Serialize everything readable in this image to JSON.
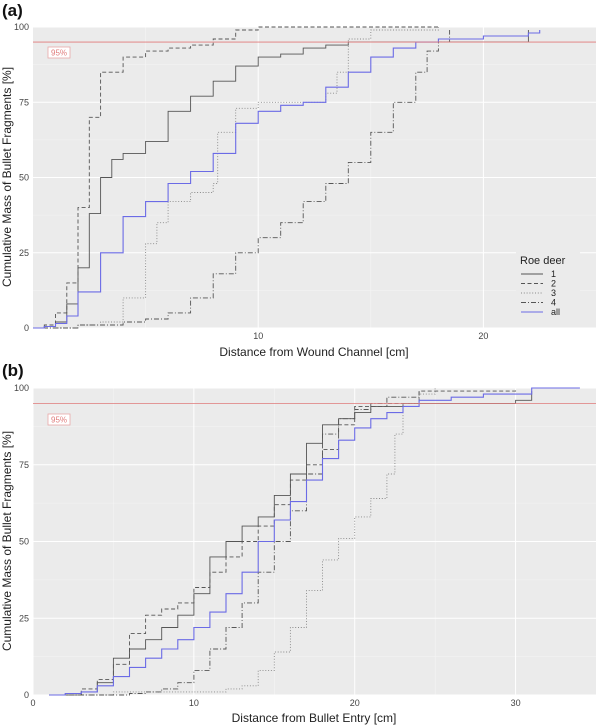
{
  "chart_data": [
    {
      "panel_label": "(a)",
      "type": "line",
      "xlabel": "Distance from Wound Channel [cm]",
      "ylabel": "Cumulative Mass of Bullet Fragments [%]",
      "xlim": [
        0,
        25
      ],
      "ylim": [
        0,
        100
      ],
      "xticks": [
        "10",
        "20"
      ],
      "xtick_values": [
        10,
        20
      ],
      "yticks": [
        "0",
        "25",
        "50",
        "75",
        "100"
      ],
      "ytick_values": [
        0,
        25,
        50,
        75,
        100
      ],
      "reference_line": {
        "y": 95,
        "label": "95%"
      },
      "legend": {
        "title": "Roe deer",
        "placement": "right",
        "entries": [
          "1",
          "2",
          "3",
          "4",
          "all"
        ]
      },
      "series": [
        {
          "name": "1",
          "style": "solid",
          "color": "#555555",
          "points": [
            [
              0,
              0
            ],
            [
              0.5,
              0.5
            ],
            [
              1,
              2
            ],
            [
              1.5,
              8
            ],
            [
              2,
              20
            ],
            [
              2.5,
              38
            ],
            [
              3,
              50
            ],
            [
              3.5,
              56
            ],
            [
              4,
              58
            ],
            [
              5,
              62
            ],
            [
              6,
              72
            ],
            [
              7,
              77
            ],
            [
              8,
              82
            ],
            [
              9,
              87
            ],
            [
              10,
              90
            ],
            [
              11,
              91
            ],
            [
              12,
              93
            ],
            [
              13,
              94
            ],
            [
              14,
              95
            ],
            [
              18,
              95
            ],
            [
              22,
              95
            ],
            [
              22,
              99
            ]
          ]
        },
        {
          "name": "2",
          "style": "dashed",
          "color": "#555555",
          "points": [
            [
              0,
              0
            ],
            [
              0.5,
              1
            ],
            [
              1,
              5
            ],
            [
              1.5,
              15
            ],
            [
              2,
              40
            ],
            [
              2.5,
              70
            ],
            [
              3,
              85
            ],
            [
              4,
              90
            ],
            [
              5,
              92
            ],
            [
              6,
              93
            ],
            [
              7,
              94
            ],
            [
              8,
              96
            ],
            [
              9,
              99
            ],
            [
              10,
              100
            ],
            [
              17,
              100
            ],
            [
              18,
              100
            ]
          ]
        },
        {
          "name": "3",
          "style": "dotted",
          "color": "#888888",
          "points": [
            [
              0,
              0
            ],
            [
              1,
              0
            ],
            [
              2,
              1
            ],
            [
              3,
              2
            ],
            [
              4,
              10
            ],
            [
              5,
              28
            ],
            [
              5.5,
              35
            ],
            [
              6,
              42
            ],
            [
              7,
              45
            ],
            [
              8,
              48
            ],
            [
              8.2,
              65
            ],
            [
              9,
              73
            ],
            [
              10,
              75
            ],
            [
              12,
              75
            ],
            [
              13,
              78
            ],
            [
              13.5,
              85
            ],
            [
              14,
              96
            ],
            [
              15,
              99
            ],
            [
              18,
              100
            ]
          ]
        },
        {
          "name": "4",
          "style": "dashdot",
          "color": "#555555",
          "points": [
            [
              0,
              0
            ],
            [
              2,
              1
            ],
            [
              4,
              2
            ],
            [
              5,
              3
            ],
            [
              6,
              5
            ],
            [
              7,
              10
            ],
            [
              8,
              18
            ],
            [
              9,
              25
            ],
            [
              10,
              30
            ],
            [
              11,
              35
            ],
            [
              12,
              42
            ],
            [
              13,
              48
            ],
            [
              14,
              55
            ],
            [
              15,
              65
            ],
            [
              16,
              75
            ],
            [
              17,
              85
            ],
            [
              17.5,
              92
            ],
            [
              18,
              95
            ],
            [
              18.5,
              99
            ]
          ]
        },
        {
          "name": "all",
          "style": "solid",
          "color": "#6b6be6",
          "points": [
            [
              0,
              0
            ],
            [
              0.5,
              0.5
            ],
            [
              1,
              1.5
            ],
            [
              1.5,
              4
            ],
            [
              2,
              12
            ],
            [
              3,
              25
            ],
            [
              4,
              37
            ],
            [
              5,
              42
            ],
            [
              6,
              48
            ],
            [
              7,
              52
            ],
            [
              8,
              58
            ],
            [
              9,
              68
            ],
            [
              10,
              72
            ],
            [
              11,
              74
            ],
            [
              12,
              75
            ],
            [
              13,
              80
            ],
            [
              14,
              85
            ],
            [
              15,
              90
            ],
            [
              16,
              93
            ],
            [
              17,
              95
            ],
            [
              18,
              96
            ],
            [
              20,
              97
            ],
            [
              22,
              98
            ],
            [
              22.5,
              99
            ]
          ]
        }
      ]
    },
    {
      "panel_label": "(b)",
      "type": "line",
      "xlabel": "Distance from Bullet Entry [cm]",
      "ylabel": "Cumulative Mass of Bullet Fragments [%]",
      "xlim": [
        0,
        35
      ],
      "ylim": [
        0,
        100
      ],
      "xticks": [
        "0",
        "10",
        "20",
        "30"
      ],
      "xtick_values": [
        0,
        10,
        20,
        30
      ],
      "yticks": [
        "0",
        "25",
        "50",
        "75",
        "100"
      ],
      "ytick_values": [
        0,
        25,
        50,
        75,
        100
      ],
      "reference_line": {
        "y": 95,
        "label": "95%"
      },
      "series": [
        {
          "name": "1",
          "style": "solid",
          "color": "#555555",
          "points": [
            [
              1,
              0
            ],
            [
              3,
              1
            ],
            [
              4,
              4
            ],
            [
              5,
              12
            ],
            [
              6,
              15
            ],
            [
              7,
              18
            ],
            [
              8,
              22
            ],
            [
              9,
              26
            ],
            [
              10,
              33
            ],
            [
              11,
              45
            ],
            [
              12,
              50
            ],
            [
              13,
              55
            ],
            [
              14,
              58
            ],
            [
              15,
              65
            ],
            [
              16,
              72
            ],
            [
              17,
              82
            ],
            [
              18,
              88
            ],
            [
              19,
              90
            ],
            [
              20,
              92
            ],
            [
              21,
              94
            ],
            [
              23,
              95
            ],
            [
              30,
              96
            ],
            [
              31,
              99
            ]
          ]
        },
        {
          "name": "2",
          "style": "dashed",
          "color": "#555555",
          "points": [
            [
              1,
              0
            ],
            [
              3,
              2
            ],
            [
              4,
              5
            ],
            [
              5,
              10
            ],
            [
              6,
              20
            ],
            [
              7,
              26
            ],
            [
              8,
              28
            ],
            [
              9,
              30
            ],
            [
              10,
              35
            ],
            [
              11,
              40
            ],
            [
              12,
              45
            ],
            [
              13,
              50
            ],
            [
              14,
              55
            ],
            [
              15,
              62
            ],
            [
              16,
              70
            ],
            [
              17,
              75
            ],
            [
              18,
              80
            ],
            [
              19,
              88
            ],
            [
              20,
              94
            ],
            [
              22,
              95
            ],
            [
              24,
              99
            ],
            [
              30,
              100
            ]
          ]
        },
        {
          "name": "3",
          "style": "dotted",
          "color": "#888888",
          "points": [
            [
              1,
              0
            ],
            [
              5,
              1
            ],
            [
              10,
              1
            ],
            [
              12,
              2
            ],
            [
              13,
              3
            ],
            [
              14,
              8
            ],
            [
              15,
              14
            ],
            [
              16,
              22
            ],
            [
              17,
              34
            ],
            [
              18,
              44
            ],
            [
              19,
              51
            ],
            [
              20,
              58
            ],
            [
              21,
              64
            ],
            [
              22,
              72
            ],
            [
              22.5,
              85
            ],
            [
              23,
              95
            ],
            [
              24,
              98
            ],
            [
              25,
              100
            ]
          ]
        },
        {
          "name": "4",
          "style": "dashdot",
          "color": "#555555",
          "points": [
            [
              1,
              0
            ],
            [
              5,
              0
            ],
            [
              6,
              0.5
            ],
            [
              7,
              1
            ],
            [
              8,
              2
            ],
            [
              9,
              4
            ],
            [
              10,
              8
            ],
            [
              11,
              15
            ],
            [
              12,
              22
            ],
            [
              13,
              30
            ],
            [
              14,
              40
            ],
            [
              15,
              50
            ],
            [
              16,
              60
            ],
            [
              17,
              72
            ],
            [
              18,
              85
            ],
            [
              19,
              90
            ],
            [
              20,
              93
            ],
            [
              21,
              95
            ],
            [
              22,
              97
            ],
            [
              24,
              99
            ]
          ]
        },
        {
          "name": "all",
          "style": "solid",
          "color": "#6b6be6",
          "points": [
            [
              1,
              0
            ],
            [
              2,
              0.5
            ],
            [
              3,
              1
            ],
            [
              4,
              3
            ],
            [
              5,
              6
            ],
            [
              6,
              9
            ],
            [
              7,
              12
            ],
            [
              8,
              15
            ],
            [
              9,
              18
            ],
            [
              10,
              22
            ],
            [
              11,
              27
            ],
            [
              12,
              33
            ],
            [
              13,
              40
            ],
            [
              14,
              50
            ],
            [
              15,
              57
            ],
            [
              16,
              63
            ],
            [
              17,
              70
            ],
            [
              18,
              77
            ],
            [
              19,
              83
            ],
            [
              20,
              87
            ],
            [
              21,
              90
            ],
            [
              22,
              92
            ],
            [
              23,
              94
            ],
            [
              24,
              96
            ],
            [
              26,
              97
            ],
            [
              28,
              98
            ],
            [
              30,
              98
            ],
            [
              31,
              100
            ],
            [
              34,
              100
            ]
          ]
        }
      ]
    }
  ]
}
